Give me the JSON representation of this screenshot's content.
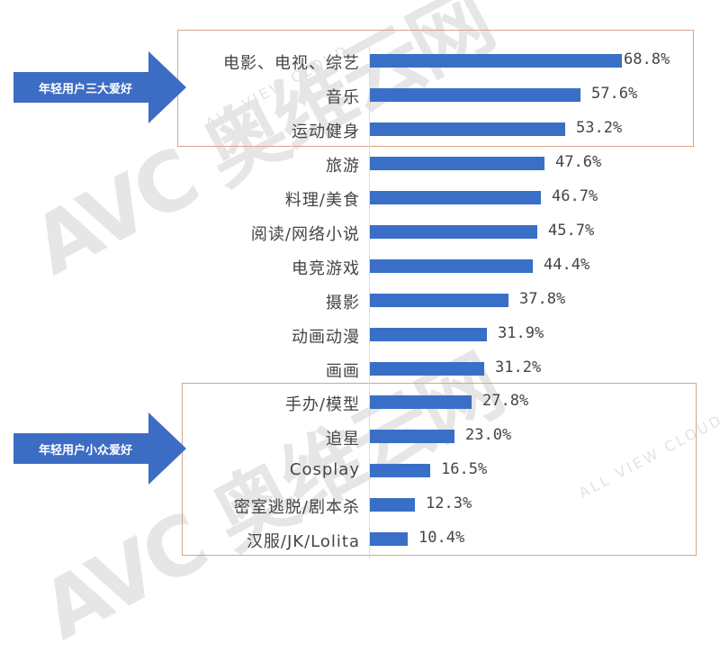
{
  "chart_data": {
    "type": "bar",
    "orientation": "horizontal",
    "title": "",
    "xlabel": "",
    "ylabel": "",
    "categories": [
      "电影、电视、综艺",
      "音乐",
      "运动健身",
      "旅游",
      "料理/美食",
      "阅读/网络小说",
      "电竞游戏",
      "摄影",
      "动画动漫",
      "画画",
      "手办/模型",
      "追星",
      "Cosplay",
      "密室逃脱/剧本杀",
      "汉服/JK/Lolita"
    ],
    "values": [
      68.8,
      57.6,
      53.2,
      47.6,
      46.7,
      45.7,
      44.4,
      37.8,
      31.9,
      31.2,
      27.8,
      23.0,
      16.5,
      12.3,
      10.4
    ],
    "value_unit": "%",
    "xlim": [
      0,
      70
    ],
    "grid": false,
    "legend": null,
    "bar_color": "#3a6fc8",
    "annotations": [
      {
        "text": "年轻用户三大爱好",
        "covers": [
          "电影、电视、综艺",
          "音乐",
          "运动健身"
        ]
      },
      {
        "text": "年轻用户小众爱好",
        "covers": [
          "手办/模型",
          "追星",
          "Cosplay",
          "密室逃脱/剧本杀",
          "汉服/JK/Lolita"
        ]
      }
    ]
  },
  "rows": [
    {
      "label": "电影、电视、综艺",
      "value": "68.8%"
    },
    {
      "label": "音乐",
      "value": "57.6%"
    },
    {
      "label": "运动健身",
      "value": "53.2%"
    },
    {
      "label": "旅游",
      "value": "47.6%"
    },
    {
      "label": "料理/美食",
      "value": "46.7%"
    },
    {
      "label": "阅读/网络小说",
      "value": "45.7%"
    },
    {
      "label": "电竞游戏",
      "value": "44.4%"
    },
    {
      "label": "摄影",
      "value": "37.8%"
    },
    {
      "label": "动画动漫",
      "value": "31.9%"
    },
    {
      "label": "画画",
      "value": "31.2%"
    },
    {
      "label": "手办/模型",
      "value": "27.8%"
    },
    {
      "label": "追星",
      "value": "23.0%"
    },
    {
      "label": "Cosplay",
      "value": "16.5%"
    },
    {
      "label": "密室逃脱/剧本杀",
      "value": "12.3%"
    },
    {
      "label": "汉服/JK/Lolita",
      "value": "10.4%"
    }
  ],
  "callouts": {
    "top": "年轻用户三大爱好",
    "niche": "年轻用户小众爱好"
  },
  "watermark": {
    "logo": "AVC 奥维云网",
    "tagline": "ALL VIEW CLOUD"
  },
  "colors": {
    "bar": "#3a6fc8",
    "arrow": "#3d6cc4",
    "box_border": "#d9a486",
    "text": "#444444"
  }
}
